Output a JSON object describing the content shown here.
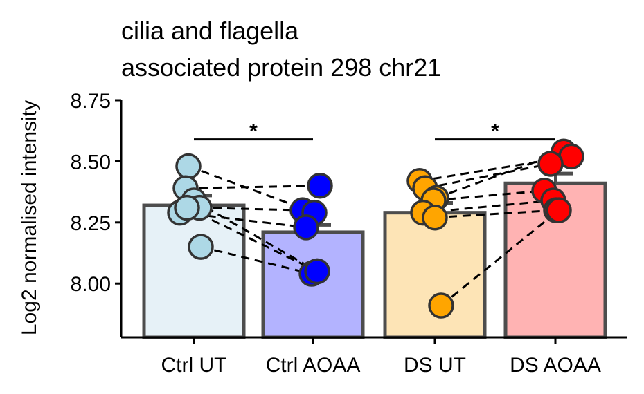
{
  "chart_data": {
    "type": "bar",
    "title_lines": [
      "cilia and flagella",
      "associated protein 298 chr21"
    ],
    "xlabel": "",
    "ylabel": "Log2 normalised intensity",
    "ylim": [
      7.78,
      8.75
    ],
    "yticks": [
      8.0,
      8.25,
      8.5,
      8.75
    ],
    "ytick_labels": [
      "8.00",
      "8.25",
      "8.50",
      "8.75"
    ],
    "categories": [
      "Ctrl UT",
      "Ctrl AOAA",
      "DS UT",
      "DS AOAA"
    ],
    "means": [
      8.32,
      8.21,
      8.29,
      8.41
    ],
    "errors": [
      0.04,
      0.03,
      0.04,
      0.04
    ],
    "bar_fill_colors": [
      "#e6f1f7",
      "#b3b3ff",
      "#fde4b6",
      "#ffb3b3"
    ],
    "point_colors": [
      "#add8e6",
      "#0000ff",
      "#ffa500",
      "#ff0000"
    ],
    "bar_edge_color": "#4d4d4d",
    "points": [
      [
        8.48,
        8.39,
        8.34,
        8.31,
        8.29,
        8.31,
        8.15
      ],
      [
        8.4,
        8.3,
        8.29,
        8.23,
        8.05,
        8.04,
        8.05
      ],
      [
        8.42,
        8.39,
        8.35,
        8.34,
        8.29,
        8.27,
        7.91
      ],
      [
        8.54,
        8.52,
        8.49,
        8.38,
        8.34,
        8.3,
        8.3
      ]
    ],
    "pairings": [
      {
        "from": 0,
        "to": 1,
        "pairs": [
          [
            0,
            2
          ],
          [
            1,
            0
          ],
          [
            2,
            6
          ],
          [
            3,
            1
          ],
          [
            4,
            3
          ],
          [
            5,
            4
          ],
          [
            6,
            5
          ]
        ]
      },
      {
        "from": 2,
        "to": 3,
        "pairs": [
          [
            0,
            1
          ],
          [
            1,
            2
          ],
          [
            2,
            0
          ],
          [
            3,
            3
          ],
          [
            4,
            4
          ],
          [
            5,
            5
          ],
          [
            6,
            6
          ]
        ]
      }
    ],
    "significance": [
      {
        "from": 0,
        "to": 1,
        "label": "*",
        "y": 8.59
      },
      {
        "from": 2,
        "to": 3,
        "label": "*",
        "y": 8.59
      }
    ]
  }
}
